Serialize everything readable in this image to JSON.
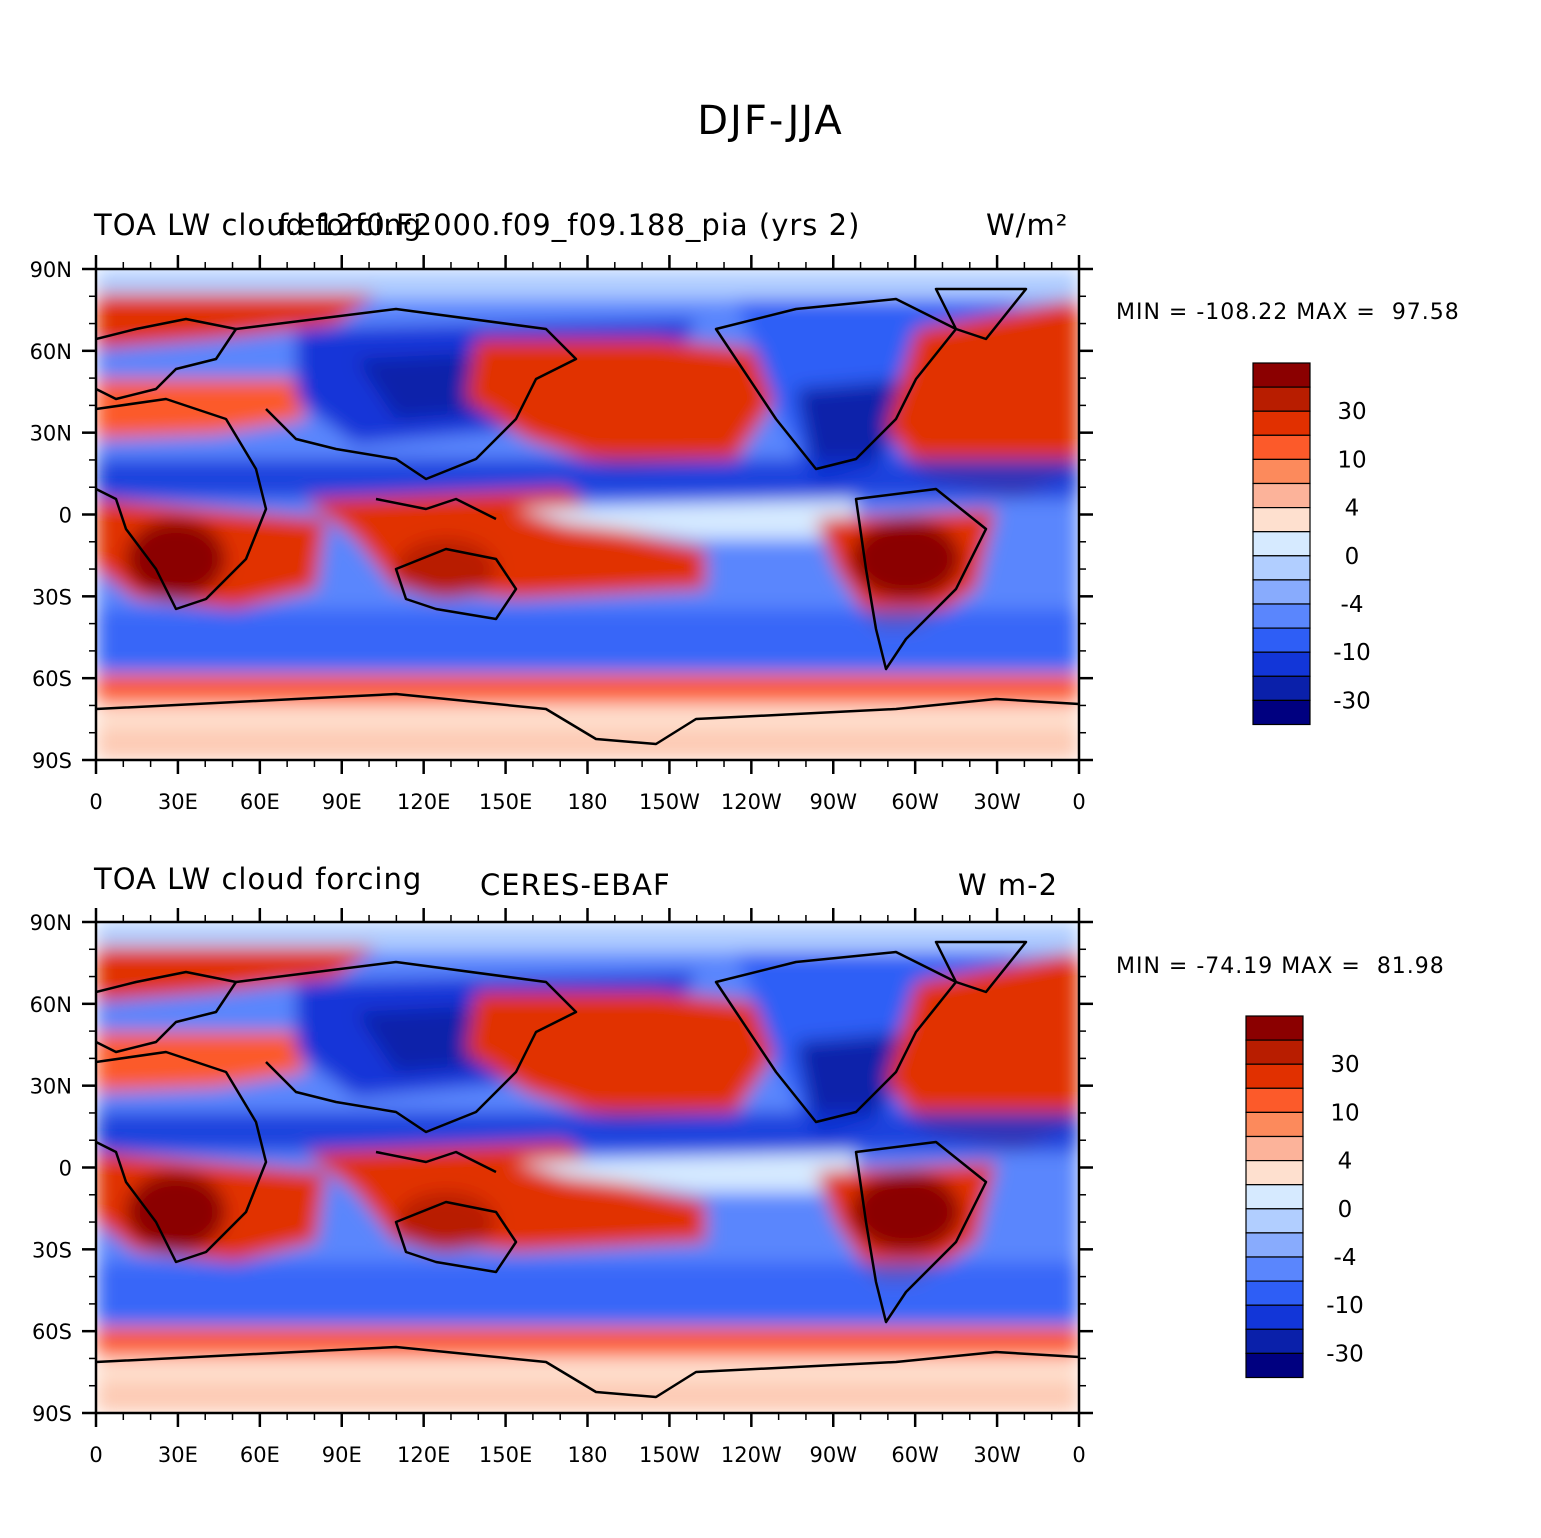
{
  "figure_title": "DJF-JJA",
  "colorbar": {
    "colors": [
      "#8b0000",
      "#b81d00",
      "#e13000",
      "#fc5a2a",
      "#fc8a5c",
      "#fcb39a",
      "#fee0cf",
      "#d6eaff",
      "#b1ceff",
      "#88abfd",
      "#5a86fd",
      "#2e5ef6",
      "#1236d8",
      "#0a20aa",
      "#000080"
    ],
    "labels": [
      "30",
      "10",
      "4",
      "0",
      "-4",
      "-10",
      "-30"
    ]
  },
  "axes": {
    "lat_labels": [
      "90N",
      "60N",
      "30N",
      "0",
      "30S",
      "60S",
      "90S"
    ],
    "lon_labels": [
      "0",
      "30E",
      "60E",
      "90E",
      "120E",
      "150E",
      "180",
      "150W",
      "120W",
      "90W",
      "60W",
      "30W",
      "0"
    ]
  },
  "panels": [
    {
      "left_title": "TOA LW cloud forcing",
      "center_title": "f.e12f0.F2000.f09_f09.188_pia (yrs 2)",
      "units": "W/m²",
      "min_label": "MIN =",
      "min": "-108.22",
      "max_label": "MAX =",
      "max": "97.58"
    },
    {
      "left_title": "TOA LW cloud forcing",
      "center_title": "CERES-EBAF",
      "units": "W m-2",
      "min_label": "MIN =",
      "min": "-74.19",
      "max_label": "MAX =",
      "max": "81.98"
    }
  ]
}
